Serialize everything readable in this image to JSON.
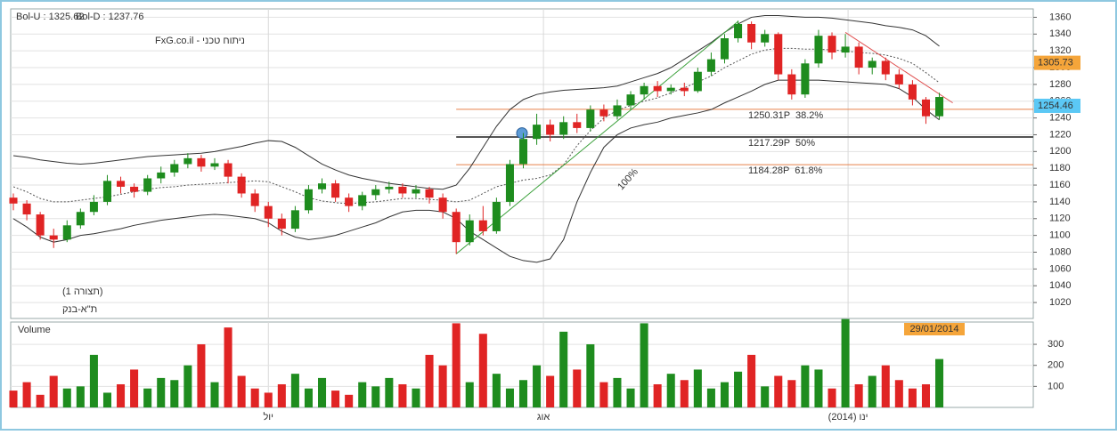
{
  "chart_data": [
    {
      "type": "candlestick",
      "legend": [
        {
          "label": "Bol-U : 1325.62",
          "color": "#d32f2f"
        },
        {
          "label": "Bol-D : 1237.76",
          "color": "#2e7d32"
        }
      ],
      "watermark": "ניתוח טכני - FxG.co.il",
      "notes": [
        {
          "label": "(תצורה 1)",
          "color": "#2e7d32"
        },
        {
          "label": "ת\"א-בנק",
          "color": "#222222"
        }
      ],
      "up_color": "#1e8c1e",
      "down_color": "#e02424",
      "open": [
        1145,
        1138,
        1125,
        1100,
        1095,
        1112,
        1128,
        1140,
        1165,
        1158,
        1152,
        1168,
        1175,
        1185,
        1192,
        1182,
        1186,
        1170,
        1150,
        1135,
        1120,
        1108,
        1130,
        1155,
        1162,
        1145,
        1135,
        1148,
        1155,
        1158,
        1150,
        1155,
        1145,
        1128,
        1092,
        1118,
        1105,
        1140,
        1185,
        1215,
        1232,
        1220,
        1235,
        1228,
        1250,
        1242,
        1255,
        1268,
        1278,
        1272,
        1276,
        1272,
        1295,
        1310,
        1335,
        1352,
        1330,
        1340,
        1292,
        1268,
        1305,
        1338,
        1318,
        1325,
        1300,
        1308,
        1292,
        1280,
        1262,
        1242
      ],
      "high": [
        1150,
        1142,
        1128,
        1108,
        1118,
        1132,
        1148,
        1172,
        1170,
        1162,
        1172,
        1182,
        1190,
        1198,
        1196,
        1192,
        1190,
        1174,
        1155,
        1140,
        1126,
        1135,
        1160,
        1168,
        1166,
        1150,
        1152,
        1160,
        1164,
        1162,
        1160,
        1158,
        1150,
        1132,
        1125,
        1135,
        1145,
        1190,
        1222,
        1245,
        1238,
        1242,
        1245,
        1255,
        1256,
        1262,
        1272,
        1282,
        1284,
        1280,
        1282,
        1300,
        1318,
        1340,
        1356,
        1355,
        1345,
        1342,
        1298,
        1310,
        1345,
        1342,
        1340,
        1330,
        1312,
        1312,
        1298,
        1285,
        1265,
        1270
      ],
      "low": [
        1130,
        1118,
        1095,
        1085,
        1092,
        1108,
        1124,
        1136,
        1150,
        1145,
        1148,
        1162,
        1170,
        1180,
        1176,
        1178,
        1162,
        1145,
        1128,
        1110,
        1100,
        1104,
        1126,
        1150,
        1140,
        1128,
        1130,
        1142,
        1150,
        1145,
        1145,
        1138,
        1120,
        1078,
        1088,
        1100,
        1102,
        1135,
        1180,
        1208,
        1212,
        1215,
        1222,
        1224,
        1236,
        1238,
        1250,
        1262,
        1265,
        1268,
        1266,
        1270,
        1290,
        1305,
        1330,
        1322,
        1325,
        1285,
        1262,
        1264,
        1300,
        1310,
        1312,
        1292,
        1292,
        1285,
        1275,
        1255,
        1233,
        1238
      ],
      "close": [
        1138,
        1125,
        1100,
        1095,
        1112,
        1128,
        1140,
        1165,
        1158,
        1152,
        1168,
        1175,
        1185,
        1192,
        1182,
        1186,
        1170,
        1150,
        1135,
        1120,
        1108,
        1130,
        1155,
        1162,
        1145,
        1135,
        1148,
        1155,
        1158,
        1150,
        1155,
        1145,
        1128,
        1092,
        1118,
        1105,
        1140,
        1185,
        1215,
        1232,
        1220,
        1235,
        1228,
        1250,
        1242,
        1255,
        1268,
        1278,
        1272,
        1276,
        1272,
        1295,
        1310,
        1335,
        1352,
        1330,
        1340,
        1292,
        1268,
        1305,
        1338,
        1318,
        1325,
        1300,
        1308,
        1292,
        1280,
        1262,
        1242,
        1265
      ],
      "bands": {
        "upper": [
          1195,
          1193,
          1190,
          1188,
          1186,
          1185,
          1186,
          1188,
          1190,
          1192,
          1194,
          1195,
          1196,
          1197,
          1198,
          1200,
          1203,
          1206,
          1210,
          1213,
          1212,
          1205,
          1195,
          1185,
          1178,
          1172,
          1168,
          1165,
          1162,
          1160,
          1158,
          1156,
          1155,
          1160,
          1180,
          1205,
          1230,
          1250,
          1262,
          1268,
          1271,
          1273,
          1274,
          1275,
          1276,
          1278,
          1283,
          1288,
          1293,
          1300,
          1310,
          1320,
          1330,
          1342,
          1352,
          1360,
          1362,
          1362,
          1361,
          1360,
          1360,
          1359,
          1357,
          1355,
          1353,
          1350,
          1348,
          1345,
          1338,
          1325.62
        ],
        "lower": [
          1120,
          1110,
          1098,
          1092,
          1095,
          1100,
          1102,
          1105,
          1108,
          1112,
          1115,
          1118,
          1120,
          1122,
          1124,
          1125,
          1124,
          1122,
          1120,
          1115,
          1105,
          1098,
          1095,
          1097,
          1100,
          1105,
          1110,
          1115,
          1122,
          1128,
          1130,
          1130,
          1128,
          1120,
          1105,
          1095,
          1085,
          1075,
          1070,
          1068,
          1072,
          1095,
          1140,
          1175,
          1205,
          1220,
          1228,
          1232,
          1235,
          1240,
          1243,
          1246,
          1250,
          1258,
          1265,
          1272,
          1280,
          1285,
          1285,
          1285,
          1285,
          1284,
          1283,
          1282,
          1281,
          1280,
          1275,
          1265,
          1250,
          1237.76
        ],
        "middle": [
          1158,
          1152,
          1144,
          1140,
          1140,
          1142,
          1144,
          1146,
          1149,
          1152,
          1155,
          1157,
          1158,
          1160,
          1161,
          1162,
          1163,
          1164,
          1165,
          1164,
          1158,
          1152,
          1145,
          1141,
          1139,
          1138,
          1139,
          1140,
          1142,
          1144,
          1144,
          1143,
          1142,
          1140,
          1142,
          1150,
          1158,
          1162,
          1166,
          1168,
          1172,
          1184,
          1207,
          1225,
          1240,
          1249,
          1255,
          1260,
          1264,
          1270,
          1276,
          1283,
          1290,
          1300,
          1308,
          1316,
          1321,
          1323,
          1323,
          1322,
          1322,
          1321,
          1320,
          1318,
          1317,
          1315,
          1311,
          1305,
          1294,
          1282
        ]
      },
      "fib_levels": [
        {
          "value": 1250.31,
          "label": "1250.31P  38.2%",
          "color": "#e8804a"
        },
        {
          "value": 1217.29,
          "label": "1217.29P  50%",
          "color": "#555555"
        },
        {
          "value": 1184.28,
          "label": "1184.28P  61.8%",
          "color": "#e8804a"
        }
      ],
      "trend_lines": [
        {
          "x": [
            33,
            54
          ],
          "y": [
            1078,
            1355
          ],
          "color": "#3aa03a",
          "label": "100%"
        },
        {
          "x": [
            62,
            70
          ],
          "y": [
            1342,
            1258
          ],
          "color": "#e05050"
        }
      ],
      "price_badges": [
        {
          "value": 1305.73,
          "label": "1305.73",
          "color": "#f5a53a"
        },
        {
          "value": 1254.46,
          "label": "1254.46",
          "color": "#5bc8f5"
        }
      ],
      "xlim": [
        -0.2,
        76
      ],
      "ylim": [
        1001,
        1370
      ],
      "yticks": [
        1020,
        1040,
        1060,
        1080,
        1100,
        1120,
        1140,
        1160,
        1180,
        1200,
        1220,
        1240,
        1260,
        1280,
        1300,
        1320,
        1340,
        1360
      ],
      "xticks": [
        {
          "value": 19,
          "label": "יול"
        },
        {
          "value": 39.5,
          "label": "אוג"
        },
        {
          "value": 62.2,
          "label": "ינו (2014)"
        }
      ],
      "grid": true
    },
    {
      "type": "bar",
      "title": "Volume",
      "date_badge": "29/01/2014",
      "values": [
        80,
        120,
        60,
        150,
        90,
        100,
        250,
        70,
        110,
        180,
        90,
        140,
        130,
        200,
        300,
        120,
        380,
        150,
        90,
        70,
        110,
        160,
        90,
        140,
        80,
        60,
        120,
        100,
        140,
        110,
        90,
        250,
        200,
        400,
        120,
        350,
        160,
        90,
        130,
        200,
        150,
        360,
        180,
        300,
        120,
        140,
        90,
        400,
        110,
        160,
        130,
        180,
        90,
        120,
        170,
        250,
        100,
        150,
        130,
        200,
        180,
        90,
        420,
        110,
        150,
        200,
        130,
        90,
        110,
        230
      ],
      "ylim": [
        0,
        406
      ],
      "yticks": [
        100,
        200,
        300
      ],
      "grid": true
    }
  ]
}
